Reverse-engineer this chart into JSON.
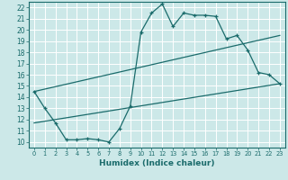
{
  "title": "",
  "xlabel": "Humidex (Indice chaleur)",
  "xlim": [
    -0.5,
    23.5
  ],
  "ylim": [
    9.5,
    22.5
  ],
  "xticks": [
    0,
    1,
    2,
    3,
    4,
    5,
    6,
    7,
    8,
    9,
    10,
    11,
    12,
    13,
    14,
    15,
    16,
    17,
    18,
    19,
    20,
    21,
    22,
    23
  ],
  "yticks": [
    10,
    11,
    12,
    13,
    14,
    15,
    16,
    17,
    18,
    19,
    20,
    21,
    22
  ],
  "bg_color": "#cce8e8",
  "line_color": "#1a6b6b",
  "grid_color": "#ffffff",
  "line1_x": [
    0,
    1,
    2,
    3,
    4,
    5,
    6,
    7,
    8,
    9,
    10,
    11,
    12,
    13,
    14,
    15,
    16,
    17,
    18,
    19,
    20,
    21,
    22,
    23
  ],
  "line1_y": [
    14.5,
    13.0,
    11.7,
    10.2,
    10.2,
    10.3,
    10.2,
    10.0,
    11.2,
    13.2,
    19.8,
    21.5,
    22.3,
    20.3,
    21.5,
    21.3,
    21.3,
    21.2,
    19.2,
    19.5,
    18.2,
    16.2,
    16.0,
    15.2
  ],
  "line2_x": [
    0,
    23
  ],
  "line2_y": [
    14.5,
    19.5
  ],
  "line3_x": [
    0,
    23
  ],
  "line3_y": [
    11.7,
    15.2
  ]
}
